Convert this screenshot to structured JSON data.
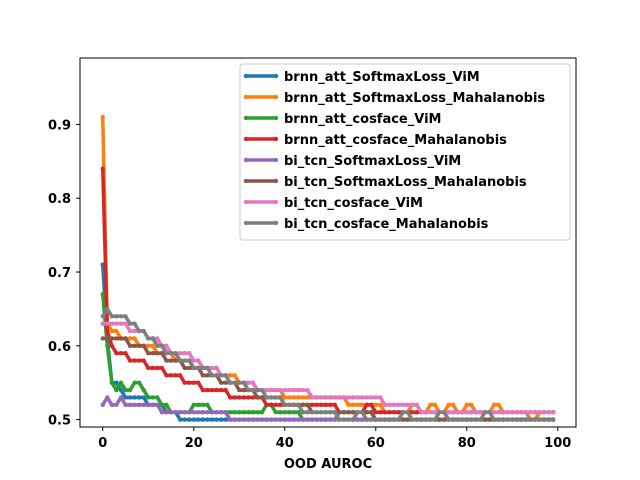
{
  "chart_data": {
    "type": "line",
    "xlabel": "OOD AUROC",
    "ylabel": "",
    "title": "",
    "xlim": [
      -5,
      104
    ],
    "ylim": [
      0.49,
      0.99
    ],
    "xticks": [
      0,
      20,
      40,
      60,
      80,
      100
    ],
    "yticks": [
      0.5,
      0.6,
      0.7,
      0.8,
      0.9
    ],
    "xtick_labels": [
      "0",
      "20",
      "40",
      "60",
      "80",
      "100"
    ],
    "ytick_labels": [
      "0.5",
      "0.6",
      "0.7",
      "0.8",
      "0.9"
    ],
    "legend_position": "upper-right",
    "grid": false,
    "series": [
      {
        "name": "brnn_att_SoftmaxLoss_ViM",
        "color": "#1f77b4",
        "points": [
          [
            0,
            0.71
          ],
          [
            1,
            0.61
          ],
          [
            2,
            0.55
          ],
          [
            4,
            0.54
          ],
          [
            5,
            0.53
          ],
          [
            9,
            0.53
          ],
          [
            10,
            0.52
          ],
          [
            14,
            0.51
          ],
          [
            16,
            0.51
          ],
          [
            17,
            0.5
          ],
          [
            99,
            0.5
          ]
        ]
      },
      {
        "name": "brnn_att_SoftmaxLoss_Mahalanobis",
        "color": "#ff7f0e",
        "points": [
          [
            0,
            0.91
          ],
          [
            1,
            0.63
          ],
          [
            2,
            0.62
          ],
          [
            4,
            0.61
          ],
          [
            8,
            0.6
          ],
          [
            12,
            0.59
          ],
          [
            16,
            0.58
          ],
          [
            20,
            0.57
          ],
          [
            26,
            0.56
          ],
          [
            30,
            0.55
          ],
          [
            34,
            0.54
          ],
          [
            40,
            0.53
          ],
          [
            48,
            0.53
          ],
          [
            54,
            0.52
          ],
          [
            60,
            0.52
          ],
          [
            62,
            0.51
          ],
          [
            66,
            0.51
          ],
          [
            68,
            0.52
          ],
          [
            70,
            0.51
          ],
          [
            72,
            0.52
          ],
          [
            74,
            0.51
          ],
          [
            76,
            0.52
          ],
          [
            78,
            0.51
          ],
          [
            80,
            0.52
          ],
          [
            82,
            0.51
          ],
          [
            86,
            0.52
          ],
          [
            88,
            0.51
          ],
          [
            92,
            0.51
          ],
          [
            94,
            0.5
          ],
          [
            96,
            0.51
          ],
          [
            99,
            0.51
          ]
        ]
      },
      {
        "name": "brnn_att_cosface_ViM",
        "color": "#2ca02c",
        "points": [
          [
            0,
            0.67
          ],
          [
            1,
            0.6
          ],
          [
            2,
            0.55
          ],
          [
            3,
            0.54
          ],
          [
            4,
            0.55
          ],
          [
            5,
            0.54
          ],
          [
            7,
            0.55
          ],
          [
            9,
            0.54
          ],
          [
            10,
            0.53
          ],
          [
            13,
            0.52
          ],
          [
            15,
            0.51
          ],
          [
            20,
            0.52
          ],
          [
            24,
            0.51
          ],
          [
            34,
            0.51
          ],
          [
            36,
            0.52
          ],
          [
            38,
            0.51
          ],
          [
            44,
            0.5
          ],
          [
            52,
            0.51
          ],
          [
            60,
            0.5
          ],
          [
            99,
            0.5
          ]
        ]
      },
      {
        "name": "brnn_att_cosface_Mahalanobis",
        "color": "#d62728",
        "points": [
          [
            0,
            0.84
          ],
          [
            1,
            0.62
          ],
          [
            2,
            0.6
          ],
          [
            3,
            0.59
          ],
          [
            6,
            0.58
          ],
          [
            10,
            0.57
          ],
          [
            14,
            0.56
          ],
          [
            18,
            0.55
          ],
          [
            22,
            0.54
          ],
          [
            28,
            0.53
          ],
          [
            36,
            0.52
          ],
          [
            48,
            0.52
          ],
          [
            52,
            0.51
          ],
          [
            56,
            0.51
          ],
          [
            58,
            0.52
          ],
          [
            60,
            0.51
          ],
          [
            99,
            0.51
          ]
        ]
      },
      {
        "name": "bi_tcn_SoftmaxLoss_ViM",
        "color": "#9467bd",
        "points": [
          [
            0,
            0.52
          ],
          [
            1,
            0.53
          ],
          [
            2,
            0.52
          ],
          [
            3,
            0.52
          ],
          [
            4,
            0.53
          ],
          [
            5,
            0.52
          ],
          [
            12,
            0.52
          ],
          [
            13,
            0.51
          ],
          [
            20,
            0.51
          ],
          [
            24,
            0.51
          ],
          [
            28,
            0.5
          ],
          [
            99,
            0.5
          ]
        ]
      },
      {
        "name": "bi_tcn_SoftmaxLoss_Mahalanobis",
        "color": "#8c564b",
        "points": [
          [
            0,
            0.61
          ],
          [
            1,
            0.61
          ],
          [
            3,
            0.61
          ],
          [
            6,
            0.6
          ],
          [
            10,
            0.59
          ],
          [
            14,
            0.58
          ],
          [
            18,
            0.57
          ],
          [
            22,
            0.56
          ],
          [
            26,
            0.55
          ],
          [
            30,
            0.54
          ],
          [
            34,
            0.53
          ],
          [
            40,
            0.52
          ],
          [
            46,
            0.51
          ],
          [
            60,
            0.5
          ],
          [
            99,
            0.5
          ]
        ]
      },
      {
        "name": "bi_tcn_cosface_ViM",
        "color": "#e377c2",
        "points": [
          [
            0,
            0.63
          ],
          [
            2,
            0.63
          ],
          [
            6,
            0.62
          ],
          [
            10,
            0.61
          ],
          [
            13,
            0.6
          ],
          [
            15,
            0.59
          ],
          [
            20,
            0.58
          ],
          [
            22,
            0.57
          ],
          [
            26,
            0.56
          ],
          [
            28,
            0.55
          ],
          [
            34,
            0.54
          ],
          [
            44,
            0.54
          ],
          [
            46,
            0.53
          ],
          [
            60,
            0.53
          ],
          [
            62,
            0.52
          ],
          [
            68,
            0.52
          ],
          [
            70,
            0.51
          ],
          [
            99,
            0.51
          ]
        ]
      },
      {
        "name": "bi_tcn_cosface_Mahalanobis",
        "color": "#7f7f7f",
        "points": [
          [
            0,
            0.64
          ],
          [
            1,
            0.65
          ],
          [
            2,
            0.64
          ],
          [
            4,
            0.64
          ],
          [
            6,
            0.63
          ],
          [
            8,
            0.62
          ],
          [
            10,
            0.61
          ],
          [
            12,
            0.6
          ],
          [
            14,
            0.59
          ],
          [
            17,
            0.58
          ],
          [
            20,
            0.57
          ],
          [
            24,
            0.56
          ],
          [
            28,
            0.55
          ],
          [
            32,
            0.54
          ],
          [
            36,
            0.53
          ],
          [
            40,
            0.52
          ],
          [
            44,
            0.51
          ],
          [
            52,
            0.5
          ],
          [
            56,
            0.51
          ],
          [
            58,
            0.5
          ],
          [
            66,
            0.51
          ],
          [
            68,
            0.5
          ],
          [
            74,
            0.51
          ],
          [
            76,
            0.5
          ],
          [
            84,
            0.51
          ],
          [
            86,
            0.5
          ],
          [
            99,
            0.5
          ]
        ]
      }
    ]
  }
}
